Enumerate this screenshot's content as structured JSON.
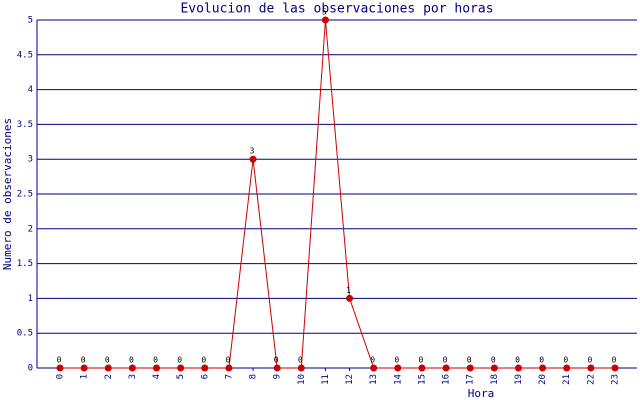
{
  "chart_data": {
    "type": "line",
    "title": "Evolucion de las observaciones por horas",
    "x_label": "Hora",
    "y_label": "Numero de observaciones",
    "categories": [
      "0",
      "1",
      "2",
      "3",
      "4",
      "5",
      "6",
      "7",
      "8",
      "9",
      "10",
      "11",
      "12",
      "13",
      "14",
      "15",
      "16",
      "17",
      "18",
      "19",
      "20",
      "21",
      "22",
      "23"
    ],
    "series": [
      {
        "name": "observaciones",
        "color": "#cc0000",
        "values": [
          0,
          0,
          0,
          0,
          0,
          0,
          0,
          0,
          3,
          0,
          0,
          5,
          1,
          0,
          0,
          0,
          0,
          0,
          0,
          0,
          0,
          0,
          0,
          0
        ]
      }
    ],
    "ylim": [
      0,
      5
    ],
    "yticks": [
      0,
      0.5,
      1,
      1.5,
      2,
      2.5,
      3,
      3.5,
      4,
      4.5,
      5
    ],
    "grid": true
  }
}
